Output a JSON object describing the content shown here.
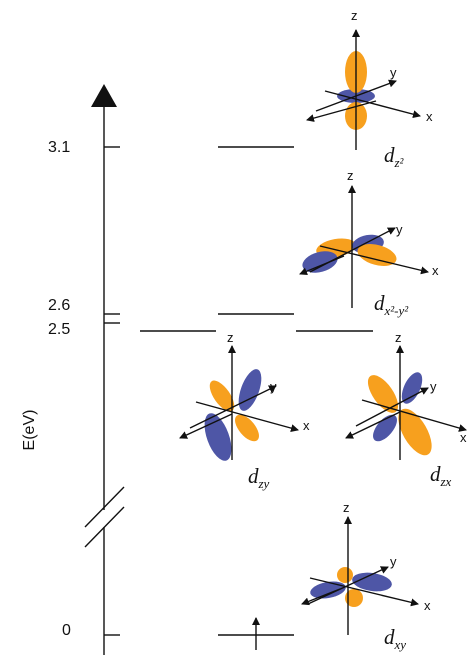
{
  "energy_axis": {
    "label": "E(eV)",
    "ticks": [
      {
        "id": "t31",
        "label": "3.1"
      },
      {
        "id": "t26",
        "label": "2.6"
      },
      {
        "id": "t25",
        "label": "2.5"
      },
      {
        "id": "t0",
        "label": "0"
      }
    ]
  },
  "orbitals": [
    {
      "id": "dz2",
      "symbol": "d",
      "sub": "z²",
      "energy": 3.1
    },
    {
      "id": "dx2y2",
      "symbol": "d",
      "sub": "x²-y²",
      "energy": 2.6
    },
    {
      "id": "dzy",
      "symbol": "d",
      "sub": "zy",
      "energy": 2.5
    },
    {
      "id": "dzx",
      "symbol": "d",
      "sub": "zx",
      "energy": 2.5
    },
    {
      "id": "dxy",
      "symbol": "d",
      "sub": "xy",
      "energy": 0
    }
  ],
  "axis_letters": {
    "x": "x",
    "y": "y",
    "z": "z"
  },
  "colors": {
    "orange": "#F7A01E",
    "blue": "#4E56A6",
    "line": "#111111"
  }
}
